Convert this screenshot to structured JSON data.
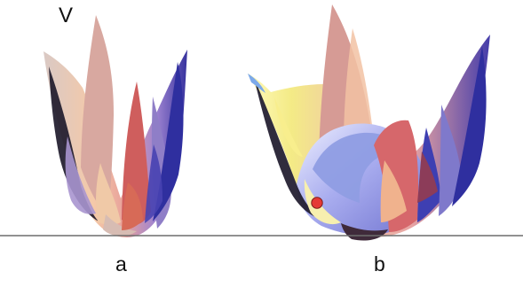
{
  "figure": {
    "axis_label": "V",
    "panels": [
      {
        "label": "a"
      },
      {
        "label": "b"
      }
    ],
    "marker": {
      "color": "#e53935"
    },
    "colors": {
      "baseline": "#6d6d6d",
      "blue": "#3f3fb0",
      "pink": "#d79a9a",
      "red": "#d95a5a",
      "peach": "#f2c9a8",
      "lavender": "#b8b9ef",
      "yellow": "#f6ee7a",
      "dark": "#111111"
    }
  }
}
